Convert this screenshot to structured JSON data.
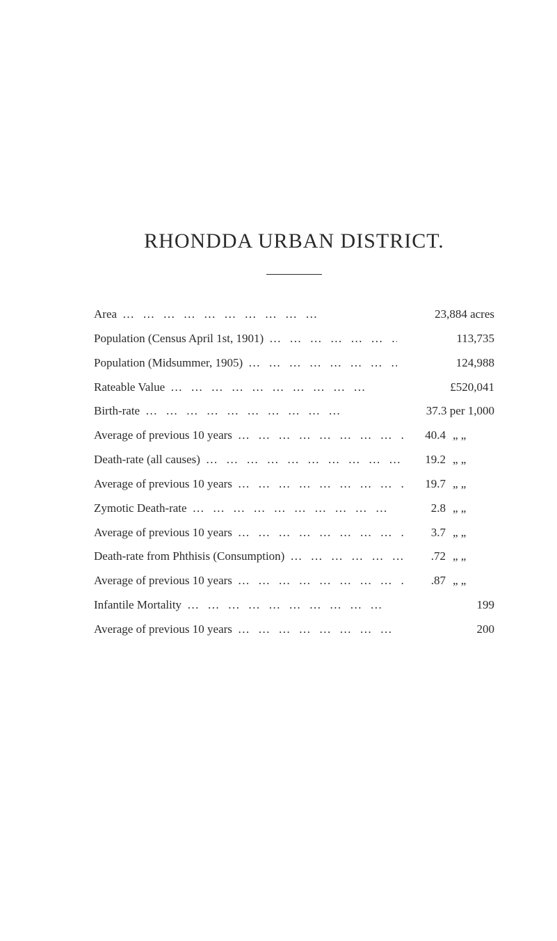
{
  "title": "RHONDDA URBAN DISTRICT.",
  "dots": "…   …   …   …   …   …   …   …   …   …",
  "rows": [
    {
      "label": "Area",
      "value": "23,884 acres",
      "unit": ""
    },
    {
      "label": "Population (Census April 1st, 1901)",
      "value": "113,735",
      "unit": ""
    },
    {
      "label": "Population (Midsummer, 1905)",
      "value": "124,988",
      "unit": ""
    },
    {
      "label": "Rateable Value",
      "value": "£520,041",
      "unit": ""
    },
    {
      "label": "Birth-rate",
      "value": "37.3 per 1,000",
      "unit": ""
    },
    {
      "label": "Average of previous 10 years",
      "value": "40.4",
      "unit": "„    „"
    },
    {
      "label": "Death-rate (all causes)",
      "value": "19.2",
      "unit": "„    „"
    },
    {
      "label": "Average of previous 10 years",
      "value": "19.7",
      "unit": "„    „"
    },
    {
      "label": "Zymotic Death-rate",
      "value": "2.8",
      "unit": "„    „"
    },
    {
      "label": "Average of previous 10 years",
      "value": "3.7",
      "unit": "„    „"
    },
    {
      "label": "Death-rate from Phthisis (Consumption)",
      "value": ".72",
      "unit": "„    „"
    },
    {
      "label": "Average of previous 10 years",
      "value": ".87",
      "unit": "„    „"
    },
    {
      "label": "Infantile Mortality",
      "value": "199",
      "unit": ""
    },
    {
      "label": "Average of previous 10 years",
      "value": "200",
      "unit": ""
    }
  ]
}
